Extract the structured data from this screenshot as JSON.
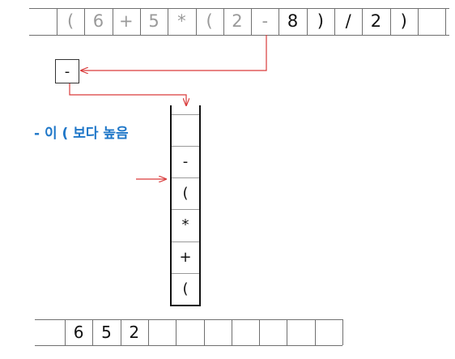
{
  "input_tokens": [
    "(",
    "6",
    "+",
    "5",
    "*",
    "(",
    "2",
    "-",
    "8",
    ")",
    "/",
    "2",
    ")",
    ""
  ],
  "current_token_index": 8,
  "popped_operator": "-",
  "note": "- 이 ( 보다 높음",
  "stack": [
    "",
    "",
    "-",
    "(",
    "*",
    "+",
    "("
  ],
  "output_tokens": [
    "6",
    "5",
    "2",
    "",
    "",
    "",
    "",
    "",
    "",
    ""
  ],
  "colors": {
    "arrow": "#d93b3b",
    "note": "#1f77c8",
    "processed": "#9a9a9a",
    "pending": "#111111"
  }
}
